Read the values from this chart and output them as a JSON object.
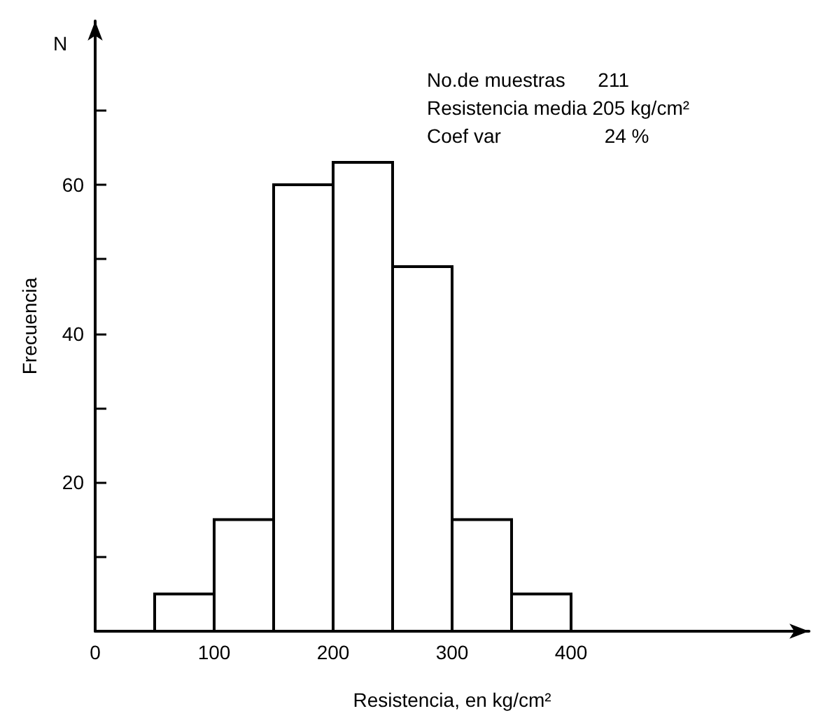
{
  "chart_data": {
    "type": "histogram",
    "xlabel": "Resistencia, en kg/cm²",
    "ylabel": "Frecuencia",
    "annotations": [
      "N",
      "No.de muestras      211",
      "Resistencia media 205 kg/cm²",
      "Coef var                   24 %"
    ],
    "bins": [
      50,
      100,
      150,
      200,
      250,
      300,
      350,
      400
    ],
    "values": [
      5,
      15,
      60,
      63,
      49,
      15,
      5
    ],
    "color": "#000000",
    "xlim": [
      0,
      600
    ],
    "xticks": [
      0,
      100,
      200,
      300,
      400
    ],
    "ylim": [
      0,
      82
    ],
    "yticks": [
      {
        "value": 10,
        "label": null
      },
      20,
      {
        "value": 30,
        "label": null
      },
      40,
      {
        "value": 50,
        "label": null
      },
      60,
      {
        "value": 70,
        "label": null
      }
    ],
    "grid": false
  }
}
